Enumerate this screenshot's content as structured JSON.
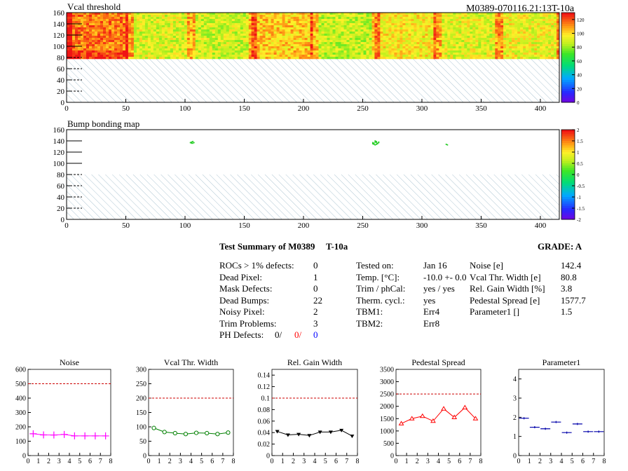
{
  "module_id": "M0389-070116.21:13T-10a",
  "maps": [
    {
      "title": "Vcal threshold",
      "x_ticks": [
        "0",
        "50",
        "100",
        "150",
        "200",
        "250",
        "300",
        "350",
        "400"
      ],
      "y_ticks": [
        "0",
        "20",
        "40",
        "60",
        "80",
        "100",
        "120",
        "140",
        "160"
      ],
      "palette_ticks": [
        "0",
        "20",
        "40",
        "60",
        "80",
        "100",
        "120"
      ],
      "xlim": [
        0,
        416
      ],
      "ylim": [
        0,
        160
      ],
      "zlim": [
        0,
        130
      ],
      "filled_rows": [
        80,
        160
      ],
      "hatched_rows": [
        0,
        80
      ],
      "roc_chips": [
        {
          "col_start": 0,
          "col_end": 52,
          "level": 116
        },
        {
          "col_start": 52,
          "col_end": 104,
          "level": 92
        },
        {
          "col_start": 104,
          "col_end": 156,
          "level": 90
        },
        {
          "col_start": 156,
          "col_end": 208,
          "level": 104
        },
        {
          "col_start": 208,
          "col_end": 260,
          "level": 88
        },
        {
          "col_start": 260,
          "col_end": 312,
          "level": 98
        },
        {
          "col_start": 312,
          "col_end": 364,
          "level": 93
        },
        {
          "col_start": 364,
          "col_end": 416,
          "level": 95
        }
      ]
    },
    {
      "title": "Bump bonding map",
      "x_ticks": [
        "0",
        "50",
        "100",
        "150",
        "200",
        "250",
        "300",
        "350",
        "400"
      ],
      "y_ticks": [
        "0",
        "20",
        "40",
        "60",
        "80",
        "100",
        "120",
        "140",
        "160"
      ],
      "palette_ticks": [
        "-2",
        "-1.5",
        "-1",
        "-0.5",
        "0",
        "0.5",
        "1",
        "1.5",
        "2"
      ],
      "xlim": [
        0,
        416
      ],
      "ylim": [
        0,
        160
      ],
      "zlim": [
        -2,
        2
      ],
      "hatched_rows": [
        0,
        80
      ],
      "dead_bumps": [
        {
          "x": 104,
          "y": 138
        },
        {
          "x": 105,
          "y": 139
        },
        {
          "x": 106,
          "y": 137
        },
        {
          "x": 107,
          "y": 138
        },
        {
          "x": 105,
          "y": 137
        },
        {
          "x": 106,
          "y": 140
        },
        {
          "x": 258,
          "y": 138
        },
        {
          "x": 259,
          "y": 137
        },
        {
          "x": 260,
          "y": 139
        },
        {
          "x": 261,
          "y": 138
        },
        {
          "x": 262,
          "y": 137
        },
        {
          "x": 263,
          "y": 138
        },
        {
          "x": 259,
          "y": 135
        },
        {
          "x": 260,
          "y": 134
        },
        {
          "x": 261,
          "y": 135
        },
        {
          "x": 262,
          "y": 136
        },
        {
          "x": 258,
          "y": 136
        },
        {
          "x": 263,
          "y": 139
        },
        {
          "x": 260,
          "y": 141
        },
        {
          "x": 261,
          "y": 140
        },
        {
          "x": 320,
          "y": 135
        },
        {
          "x": 321,
          "y": 134
        }
      ]
    }
  ],
  "summary": {
    "heading": "Test Summary of M0389",
    "label": "T-10a",
    "grade": "GRADE:  A",
    "col1": [
      {
        "label": "ROCs > 1% defects:",
        "value": "0"
      },
      {
        "label": "Dead Pixel:",
        "value": "1"
      },
      {
        "label": "Mask Defects:",
        "value": "0"
      },
      {
        "label": "Dead Bumps:",
        "value": "22"
      },
      {
        "label": "Noisy Pixel:",
        "value": "2"
      },
      {
        "label": "Trim Problems:",
        "value": "3"
      }
    ],
    "ph_defects": {
      "label": "PH Defects:",
      "v1": "0/",
      "v2": "0/",
      "v3": "0",
      "c2": "#ff0000",
      "c3": "#0000ff"
    },
    "col2": [
      {
        "label": "Tested on:",
        "value": "Jan 16"
      },
      {
        "label": "Temp. [°C]:",
        "value": "-10.0 +- 0.0"
      },
      {
        "label": "Trim / phCal:",
        "value": "yes / yes"
      },
      {
        "label": "Therm. cycl.:",
        "value": "yes"
      },
      {
        "label": "TBM1:",
        "value": "Err4"
      },
      {
        "label": "TBM2:",
        "value": "Err8"
      }
    ],
    "col3": [
      {
        "label": "Noise [e]",
        "value": "142.4"
      },
      {
        "label": "Vcal Thr. Width [e]",
        "value": "80.8"
      },
      {
        "label": "Rel. Gain Width [%]",
        "value": "3.8"
      },
      {
        "label": "Pedestal Spread [e]",
        "value": "1577.7"
      },
      {
        "label": "Parameter1 []",
        "value": "1.5"
      }
    ]
  },
  "chart_data": [
    {
      "type": "line",
      "title": "Noise",
      "color": "#ff00ff",
      "marker": "cross",
      "x": [
        0.5,
        1.5,
        2.5,
        3.5,
        4.5,
        5.5,
        6.5,
        7.5
      ],
      "values": [
        152,
        144,
        143,
        147,
        137,
        137,
        137,
        137
      ],
      "ylim": [
        0,
        600
      ],
      "y_ticks": [
        0,
        100,
        200,
        300,
        400,
        500,
        600
      ],
      "x_ticks": [
        0,
        1,
        2,
        3,
        4,
        5,
        6,
        7,
        8
      ],
      "limit": 500,
      "connected": true
    },
    {
      "type": "line",
      "title": "Vcal Thr. Width",
      "color": "#008000",
      "marker": "circle",
      "x": [
        0.5,
        1.5,
        2.5,
        3.5,
        4.5,
        5.5,
        6.5,
        7.5
      ],
      "values": [
        96,
        82,
        78,
        75,
        79,
        78,
        75,
        80
      ],
      "ylim": [
        0,
        300
      ],
      "y_ticks": [
        0,
        50,
        100,
        150,
        200,
        250,
        300
      ],
      "x_ticks": [
        0,
        1,
        2,
        3,
        4,
        5,
        6,
        7,
        8
      ],
      "limit": 200,
      "connected": true
    },
    {
      "type": "line",
      "title": "Rel. Gain Width",
      "color": "#000000",
      "marker": "triangle-down",
      "x": [
        0.5,
        1.5,
        2.5,
        3.5,
        4.5,
        5.5,
        6.5,
        7.5
      ],
      "values": [
        0.042,
        0.036,
        0.037,
        0.035,
        0.041,
        0.041,
        0.044,
        0.034
      ],
      "ylim": [
        0,
        0.15
      ],
      "y_ticks": [
        0,
        0.02,
        0.04,
        0.06,
        0.08,
        0.1,
        0.12,
        0.14
      ],
      "x_ticks": [
        0,
        1,
        2,
        3,
        4,
        5,
        6,
        7,
        8
      ],
      "limit": 0.1,
      "connected": true
    },
    {
      "type": "line",
      "title": "Pedestal Spread",
      "color": "#ff0000",
      "marker": "triangle-up",
      "x": [
        0.5,
        1.5,
        2.5,
        3.5,
        4.5,
        5.5,
        6.5,
        7.5
      ],
      "values": [
        1300,
        1500,
        1600,
        1400,
        1900,
        1550,
        1950,
        1500
      ],
      "ylim": [
        0,
        3500
      ],
      "y_ticks": [
        0,
        500,
        1000,
        1500,
        2000,
        2500,
        3000,
        3500
      ],
      "x_ticks": [
        0,
        1,
        2,
        3,
        4,
        5,
        6,
        7,
        8
      ],
      "limit": 2500,
      "connected": true
    },
    {
      "type": "line",
      "title": "Parameter1",
      "color": "#0000aa",
      "marker": "hbar",
      "x": [
        0.5,
        1.5,
        2.5,
        3.5,
        4.5,
        5.5,
        6.5,
        7.5
      ],
      "values": [
        1.95,
        1.48,
        1.4,
        1.75,
        1.2,
        1.65,
        1.25,
        1.25
      ],
      "ylim": [
        0,
        4.5
      ],
      "y_ticks": [
        0,
        1,
        2,
        3,
        4
      ],
      "x_ticks": [
        0,
        1,
        2,
        3,
        4,
        5,
        6,
        7,
        8
      ],
      "limit": null,
      "connected": false
    }
  ]
}
